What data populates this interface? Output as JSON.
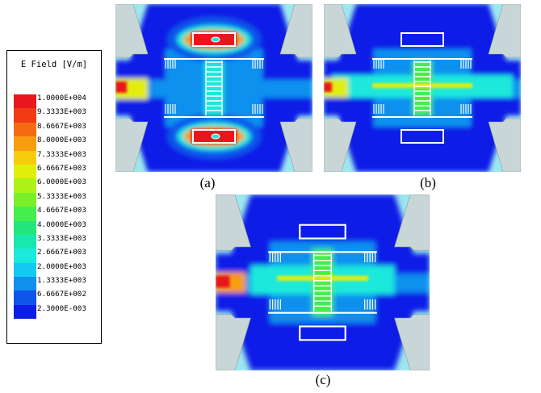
{
  "legend": {
    "title": "E Field [V/m]",
    "entries": [
      {
        "label": "1.0000E+004",
        "color": "#e8161d"
      },
      {
        "label": "9.3333E+003",
        "color": "#f03a14"
      },
      {
        "label": "8.6667E+003",
        "color": "#f56b11"
      },
      {
        "label": "8.0000E+003",
        "color": "#f89d10"
      },
      {
        "label": "7.3333E+003",
        "color": "#f7cc0c"
      },
      {
        "label": "6.6667E+003",
        "color": "#e1ee0c"
      },
      {
        "label": "6.0000E+003",
        "color": "#aef218"
      },
      {
        "label": "5.3333E+003",
        "color": "#7af02a"
      },
      {
        "label": "4.6667E+003",
        "color": "#45ee4c"
      },
      {
        "label": "4.0000E+003",
        "color": "#22e67d"
      },
      {
        "label": "3.3333E+003",
        "color": "#19e8ae"
      },
      {
        "label": "2.6667E+003",
        "color": "#1be9dc"
      },
      {
        "label": "2.0000E+003",
        "color": "#14c9f1"
      },
      {
        "label": "1.3333E+003",
        "color": "#1190ee"
      },
      {
        "label": "6.6667E+002",
        "color": "#1055ea"
      },
      {
        "label": "2.3000E-003",
        "color": "#0c1ee6"
      }
    ]
  },
  "panels": [
    {
      "caption": "(a)",
      "mode": "a"
    },
    {
      "caption": "(b)",
      "mode": "b"
    },
    {
      "caption": "(c)",
      "mode": "c"
    }
  ]
}
